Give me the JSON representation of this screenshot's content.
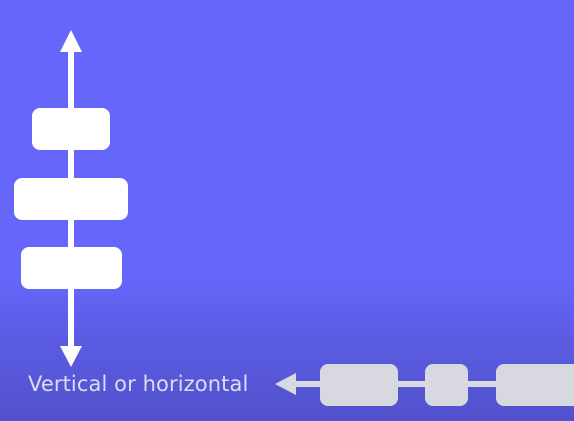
{
  "caption": "Vertical or horizontal",
  "colors": {
    "background": "#6666fb",
    "primary_shapes": "#ffffff",
    "muted_shapes": "#d8d8e0",
    "caption_text": "#dcdcf2"
  },
  "icons": [
    "vertical-arrow-icon",
    "horizontal-arrow-icon"
  ]
}
